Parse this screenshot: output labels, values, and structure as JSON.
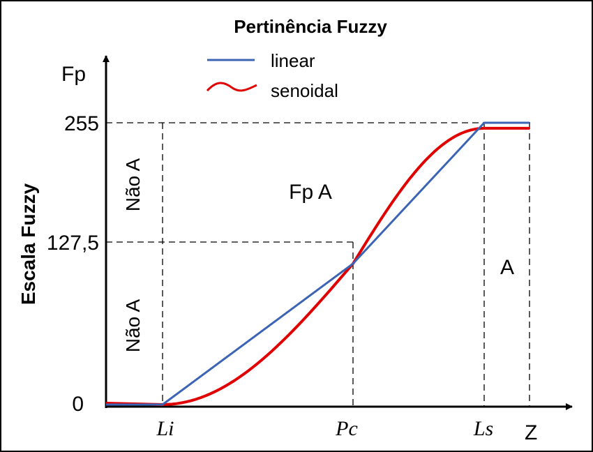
{
  "chart_data": {
    "type": "line",
    "title": "Pertinência Fuzzy",
    "ylabel": "Escala Fuzzy",
    "y_axis_symbol": "Fp",
    "x_axis_symbol": "Z",
    "x_ticks": [
      "Li",
      "Pc",
      "Ls"
    ],
    "y_ticks": [
      {
        "label": "0",
        "value": 0
      },
      {
        "label": "127,5",
        "value": 127.5
      },
      {
        "label": "255",
        "value": 255
      }
    ],
    "ylim": [
      0,
      255
    ],
    "grid": false,
    "legend_placement": "top-center",
    "series": [
      {
        "name": "linear",
        "color": "#3c64b4",
        "points": [
          {
            "x": "start",
            "y": 0
          },
          {
            "x": "Li",
            "y": 0
          },
          {
            "x": "Pc",
            "y": 127.5
          },
          {
            "x": "Ls",
            "y": 255
          },
          {
            "x": "Z",
            "y": 255
          }
        ]
      },
      {
        "name": "senoidal",
        "color": "#e00000",
        "points": [
          {
            "x": "start",
            "y": 0
          },
          {
            "x": "Li",
            "y": 0
          },
          {
            "x": "Pc",
            "y": 127.5
          },
          {
            "x": "Ls",
            "y": 250
          },
          {
            "x": "Z",
            "y": 250
          }
        ]
      }
    ],
    "annotations": [
      {
        "text": "Não A",
        "region": "left-upper"
      },
      {
        "text": "Não A",
        "region": "left-lower"
      },
      {
        "text": "Fp A",
        "region": "center"
      },
      {
        "text": "A",
        "region": "right"
      }
    ],
    "axis_color": "#000000"
  }
}
